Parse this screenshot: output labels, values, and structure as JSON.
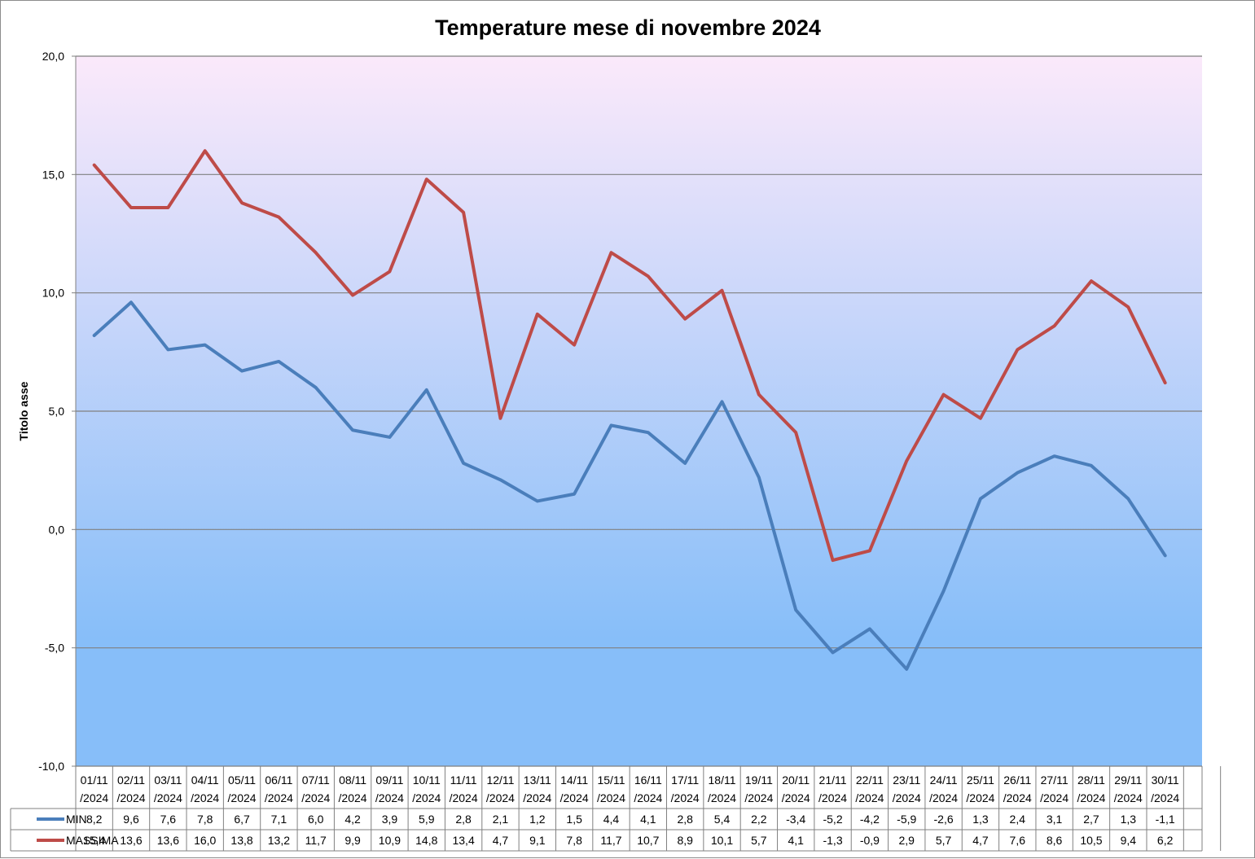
{
  "chart_data": {
    "type": "line",
    "title": "Temperature mese di novembre 2024",
    "ylabel": "Titolo asse",
    "xlabel": "",
    "ylim": [
      -10,
      20
    ],
    "ytick_labels": [
      "-10,0",
      "-5,0",
      "0,0",
      "5,0",
      "10,0",
      "15,0",
      "20,0"
    ],
    "yticks": [
      -10,
      -5,
      0,
      5,
      10,
      15,
      20
    ],
    "grid": true,
    "legend": "data-table",
    "categories": [
      "01/11/2024",
      "02/11/2024",
      "03/11/2024",
      "04/11/2024",
      "05/11/2024",
      "06/11/2024",
      "07/11/2024",
      "08/11/2024",
      "09/11/2024",
      "10/11/2024",
      "11/11/2024",
      "12/11/2024",
      "13/11/2024",
      "14/11/2024",
      "15/11/2024",
      "16/11/2024",
      "17/11/2024",
      "18/11/2024",
      "19/11/2024",
      "20/11/2024",
      "21/11/2024",
      "22/11/2024",
      "23/11/2024",
      "24/11/2024",
      "25/11/2024",
      "26/11/2024",
      "27/11/2024",
      "28/11/2024",
      "29/11/2024",
      "30/11/2024"
    ],
    "category_lines": [
      [
        "01/11",
        "/2024"
      ],
      [
        "02/11",
        "/2024"
      ],
      [
        "03/11",
        "/2024"
      ],
      [
        "04/11",
        "/2024"
      ],
      [
        "05/11",
        "/2024"
      ],
      [
        "06/11",
        "/2024"
      ],
      [
        "07/11",
        "/2024"
      ],
      [
        "08/11",
        "/2024"
      ],
      [
        "09/11",
        "/2024"
      ],
      [
        "10/11",
        "/2024"
      ],
      [
        "11/11",
        "/2024"
      ],
      [
        "12/11",
        "/2024"
      ],
      [
        "13/11",
        "/2024"
      ],
      [
        "14/11",
        "/2024"
      ],
      [
        "15/11",
        "/2024"
      ],
      [
        "16/11",
        "/2024"
      ],
      [
        "17/11",
        "/2024"
      ],
      [
        "18/11",
        "/2024"
      ],
      [
        "19/11",
        "/2024"
      ],
      [
        "20/11",
        "/2024"
      ],
      [
        "21/11",
        "/2024"
      ],
      [
        "22/11",
        "/2024"
      ],
      [
        "23/11",
        "/2024"
      ],
      [
        "24/11",
        "/2024"
      ],
      [
        "25/11",
        "/2024"
      ],
      [
        "26/11",
        "/2024"
      ],
      [
        "27/11",
        "/2024"
      ],
      [
        "28/11",
        "/2024"
      ],
      [
        "29/11",
        "/2024"
      ],
      [
        "30/11",
        "/2024"
      ]
    ],
    "series": [
      {
        "name": "MIN",
        "color": "#4a7ebb",
        "values": [
          8.2,
          9.6,
          7.6,
          7.8,
          6.7,
          7.1,
          6.0,
          4.2,
          3.9,
          5.9,
          2.8,
          2.1,
          1.2,
          1.5,
          4.4,
          4.1,
          2.8,
          5.4,
          2.2,
          -3.4,
          -5.2,
          -4.2,
          -5.9,
          -2.6,
          1.3,
          2.4,
          3.1,
          2.7,
          1.3,
          -1.1
        ],
        "labels": [
          "8,2",
          "9,6",
          "7,6",
          "7,8",
          "6,7",
          "7,1",
          "6,0",
          "4,2",
          "3,9",
          "5,9",
          "2,8",
          "2,1",
          "1,2",
          "1,5",
          "4,4",
          "4,1",
          "2,8",
          "5,4",
          "2,2",
          "-3,4",
          "-5,2",
          "-4,2",
          "-5,9",
          "-2,6",
          "1,3",
          "2,4",
          "3,1",
          "2,7",
          "1,3",
          "-1,1"
        ]
      },
      {
        "name": "MASSIMA",
        "color": "#be4b48",
        "values": [
          15.4,
          13.6,
          13.6,
          16.0,
          13.8,
          13.2,
          11.7,
          9.9,
          10.9,
          14.8,
          13.4,
          4.7,
          9.1,
          7.8,
          11.7,
          10.7,
          8.9,
          10.1,
          5.7,
          4.1,
          -1.3,
          -0.9,
          2.9,
          5.7,
          4.7,
          7.6,
          8.6,
          10.5,
          9.4,
          6.2
        ],
        "labels": [
          "15,4",
          "13,6",
          "13,6",
          "16,0",
          "13,8",
          "13,2",
          "11,7",
          "9,9",
          "10,9",
          "14,8",
          "13,4",
          "4,7",
          "9,1",
          "7,8",
          "11,7",
          "10,7",
          "8,9",
          "10,1",
          "5,7",
          "4,1",
          "-1,3",
          "-0,9",
          "2,9",
          "5,7",
          "4,7",
          "7,6",
          "8,6",
          "10,5",
          "9,4",
          "6,2"
        ]
      }
    ],
    "plot_background": [
      "#fbe9fa",
      "#87bef9"
    ],
    "gridline_color": "#808080"
  }
}
